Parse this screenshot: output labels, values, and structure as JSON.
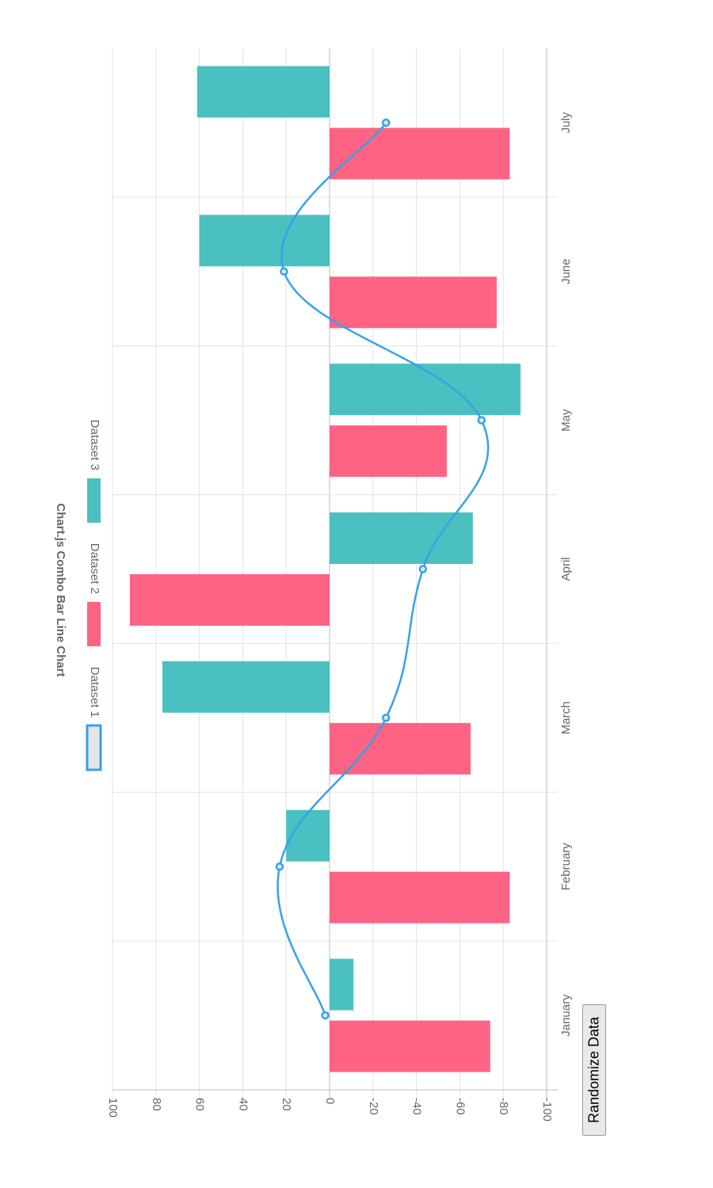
{
  "chart_data": {
    "type": "bar",
    "title": "Chart.js Combo Bar Line Chart",
    "categories": [
      "January",
      "February",
      "March",
      "April",
      "May",
      "June",
      "July"
    ],
    "ylim": [
      -100,
      100
    ],
    "y_ticks": [
      100,
      80,
      60,
      40,
      20,
      0,
      -20,
      -40,
      -60,
      -80,
      -100
    ],
    "grid": true,
    "orientation": "rotated 90° clockwise (category axis runs top-to-bottom along the right side)",
    "legend_position": "top",
    "series": [
      {
        "name": "Dataset 1",
        "type": "line",
        "color": "#36a2eb",
        "fill": "#e6e6e6",
        "values": [
          2,
          23,
          -26,
          -43,
          -70,
          21,
          -26
        ]
      },
      {
        "name": "Dataset 2",
        "type": "bar",
        "color": "#ff6384",
        "values": [
          -74,
          -83,
          -65,
          92,
          -54,
          -77,
          -83
        ]
      },
      {
        "name": "Dataset 3",
        "type": "bar",
        "color": "#4bc0c0",
        "values": [
          -11,
          20,
          77,
          -66,
          -88,
          60,
          61
        ]
      }
    ]
  },
  "controls": {
    "randomize_label": "Randomize Data"
  }
}
